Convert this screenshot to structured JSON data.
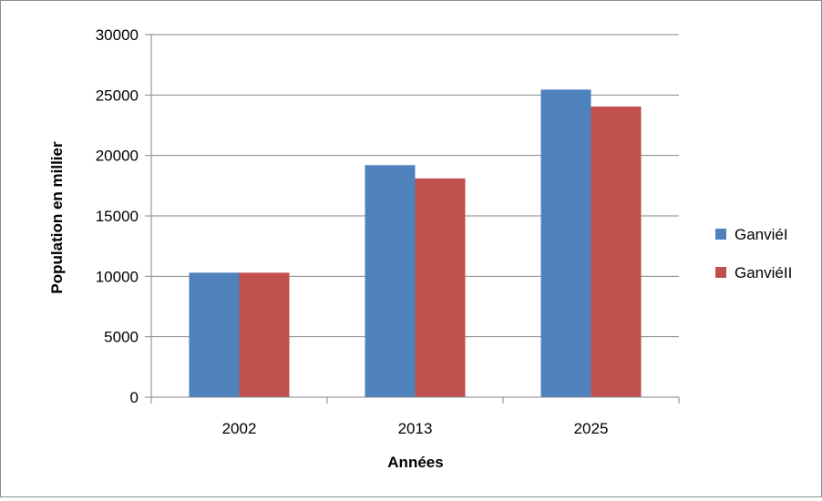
{
  "chart_data": {
    "type": "bar",
    "categories": [
      "2002",
      "2013",
      "2025"
    ],
    "series": [
      {
        "name": "GanviéI",
        "values": [
          10300,
          19200,
          25450
        ],
        "color": "#4F81BD"
      },
      {
        "name": "GanviéII",
        "values": [
          10300,
          18100,
          24050
        ],
        "color": "#C0504D"
      }
    ],
    "xlabel": "Années",
    "ylabel": "Population  en millier",
    "ylim": [
      0,
      30000
    ],
    "yticks": [
      "0",
      "5000",
      "10000",
      "15000",
      "20000",
      "25000",
      "30000"
    ],
    "grid": true,
    "legend_position": "right"
  }
}
